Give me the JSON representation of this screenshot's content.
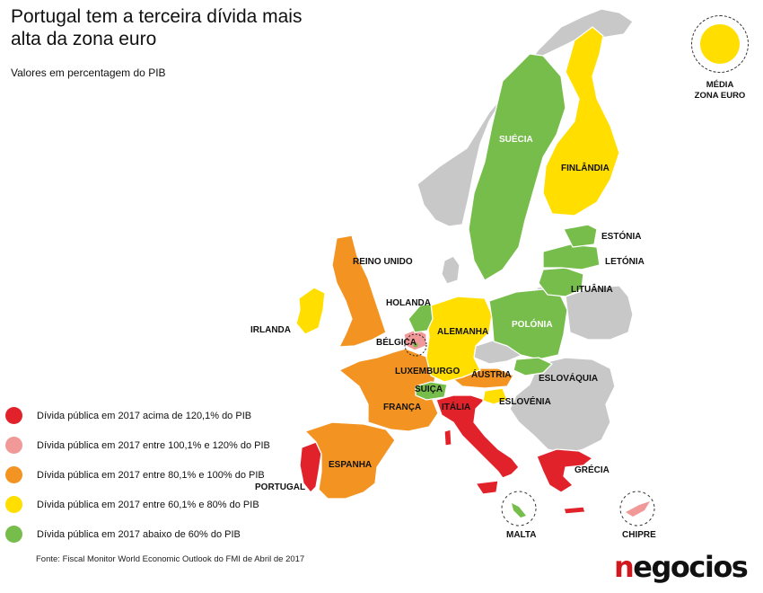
{
  "title": "Portugal tem a terceira dívida mais alta da zona euro",
  "subtitle": "Valores em percentagem do PIB",
  "colors": {
    "above_120": "#e2222a",
    "100_120": "#f19898",
    "80_100": "#f39321",
    "60_80": "#ffde00",
    "below_60": "#76bd4b",
    "non_euro": "#c8c8c8"
  },
  "legend": [
    {
      "label": "Dívida pública em 2017 acima de 120,1% do PIB",
      "color": "#e2222a"
    },
    {
      "label": "Dívida pública em 2017 entre 100,1% e 120% do PIB",
      "color": "#f19898"
    },
    {
      "label": "Dívida pública em 2017 entre 80,1% e 100% do PIB",
      "color": "#f39321"
    },
    {
      "label": "Dívida pública em 2017 entre 60,1% e 80% do PIB",
      "color": "#ffde00"
    },
    {
      "label": "Dívida pública em 2017 abaixo de 60% do PIB",
      "color": "#76bd4b"
    }
  ],
  "euro_average": {
    "label_line1": "MÉDIA",
    "label_line2": "ZONA EURO",
    "color": "#ffde00"
  },
  "countries": {
    "portugal": "PORTUGAL",
    "espanha": "ESPANHA",
    "franca": "FRANÇA",
    "irlanda": "IRLANDA",
    "reino_unido": "REINO UNIDO",
    "holanda": "HOLANDA",
    "belgica": "BÉLGICA",
    "luxemburgo": "LUXEMBURGO",
    "alemanha": "ALEMANHA",
    "suica": "SUIÇA",
    "austria": "ÁUSTRIA",
    "italia": "ITÁLIA",
    "eslovenia": "ESLOVÉNIA",
    "eslovaquia": "ESLOVÁQUIA",
    "polonia": "POLÓNIA",
    "lituania": "LITUÂNIA",
    "letonia": "LETÓNIA",
    "estonia": "ESTÓNIA",
    "finlandia": "FINLÂNDIA",
    "suecia": "SUÉCIA",
    "grecia": "GRÉCIA",
    "malta": "MALTA",
    "chipre": "CHIPRE"
  },
  "source": "Fonte: Fiscal Monitor World Economic Outlook do FMI de Abril de 2017",
  "logo": {
    "text": "negocios"
  }
}
